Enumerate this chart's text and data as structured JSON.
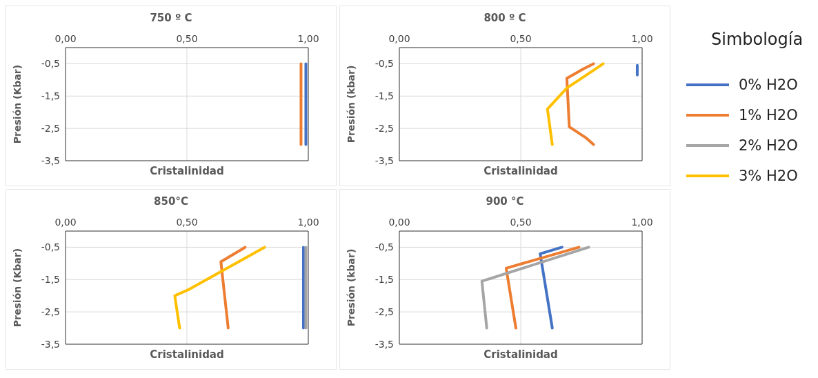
{
  "chart_data": [
    {
      "type": "line",
      "title": "750 º C",
      "xlabel": "Cristalinidad",
      "ylabel": "Presión (Kbar)",
      "xlim": [
        0,
        1
      ],
      "xticks": [
        {
          "value": 0,
          "label": "0,00"
        },
        {
          "value": 0.5,
          "label": "0,50"
        },
        {
          "value": 1,
          "label": "1,00"
        }
      ],
      "ylim": [
        -3.5,
        0
      ],
      "yticks": [
        {
          "value": -0.5,
          "label": "-0,5"
        },
        {
          "value": -1.5,
          "label": "-1,5"
        },
        {
          "value": -2.5,
          "label": "-2,5"
        },
        {
          "value": -3.5,
          "label": "-3,5"
        }
      ],
      "grid": true,
      "series": [
        {
          "color": "#4472c4",
          "x": [
            0.99,
            0.99
          ],
          "values": [
            -0.5,
            -3
          ]
        },
        {
          "color": "#ed7d31",
          "x": [
            0.97,
            0.97
          ],
          "values": [
            -0.5,
            -3
          ]
        }
      ]
    },
    {
      "type": "line",
      "title": "800 º C",
      "xlabel": "Cristalinidad",
      "ylabel": "Presión (kbar)",
      "xlim": [
        0,
        1
      ],
      "xticks": [
        {
          "value": 0,
          "label": "0,00"
        },
        {
          "value": 0.5,
          "label": "0,50"
        },
        {
          "value": 1,
          "label": "1,00"
        }
      ],
      "ylim": [
        -3.5,
        0
      ],
      "yticks": [
        {
          "value": -0.5,
          "label": "-0,5"
        },
        {
          "value": -1.5,
          "label": "-1,5"
        },
        {
          "value": -2.5,
          "label": "-2,5"
        },
        {
          "value": -3.5,
          "label": "-3,5"
        }
      ],
      "grid": true,
      "series": [
        {
          "color": "#4472c4",
          "x": [
            0.98,
            0.98
          ],
          "values": [
            -0.55,
            -0.85
          ]
        },
        {
          "color": "#ed7d31",
          "x": [
            0.8,
            0.76,
            0.69,
            0.7,
            0.77,
            0.8
          ],
          "values": [
            -0.5,
            -0.65,
            -0.95,
            -2.45,
            -2.8,
            -3
          ]
        },
        {
          "color": "#ffc000",
          "x": [
            0.84,
            0.8,
            0.69,
            0.61,
            0.63
          ],
          "values": [
            -0.5,
            -0.7,
            -1.25,
            -1.9,
            -3
          ]
        }
      ]
    },
    {
      "type": "line",
      "title": "850°C",
      "xlabel": "Cristalinidad",
      "ylabel": "Presión (Kbar)",
      "xlim": [
        0,
        1
      ],
      "xticks": [
        {
          "value": 0,
          "label": "0,00"
        },
        {
          "value": 0.5,
          "label": "0,50"
        },
        {
          "value": 1,
          "label": "1,00"
        }
      ],
      "ylim": [
        -3.5,
        0
      ],
      "yticks": [
        {
          "value": -0.5,
          "label": "-0,5"
        },
        {
          "value": -1.5,
          "label": "-1,5"
        },
        {
          "value": -2.5,
          "label": "-2,5"
        },
        {
          "value": -3.5,
          "label": "-3,5"
        }
      ],
      "grid": true,
      "legend": "right",
      "legend_title": "Simbología",
      "series": [
        {
          "name": "0% H2O",
          "color": "#4472c4",
          "x": [
            0.98,
            0.98
          ],
          "values": [
            -0.5,
            -3
          ]
        },
        {
          "name": "1% H2O",
          "color": "#ed7d31",
          "x": [
            0.74,
            0.64,
            0.67
          ],
          "values": [
            -0.5,
            -0.95,
            -3
          ]
        },
        {
          "name": "2% H2O",
          "color": "#a5a5a5",
          "x": [
            0.99,
            0.99
          ],
          "values": [
            -0.5,
            -3
          ]
        },
        {
          "name": "3% H2O",
          "color": "#ffc000",
          "x": [
            0.82,
            0.51,
            0.45,
            0.47
          ],
          "values": [
            -0.5,
            -1.8,
            -2,
            -3
          ]
        }
      ]
    },
    {
      "type": "line",
      "title": "900 °C",
      "xlabel": "Cristalinidad",
      "ylabel": "Presión (kbar)",
      "xlim": [
        0,
        1
      ],
      "xticks": [
        {
          "value": 0,
          "label": "0,00"
        },
        {
          "value": 0.5,
          "label": "0,50"
        },
        {
          "value": 1,
          "label": "1,00"
        }
      ],
      "ylim": [
        -3.5,
        0
      ],
      "yticks": [
        {
          "value": -0.5,
          "label": "-0,5"
        },
        {
          "value": -1.5,
          "label": "-1,5"
        },
        {
          "value": -2.5,
          "label": "-2,5"
        },
        {
          "value": -3.5,
          "label": "-3,5"
        }
      ],
      "grid": true,
      "series": [
        {
          "color": "#4472c4",
          "x": [
            0.67,
            0.58,
            0.63
          ],
          "values": [
            -0.5,
            -0.7,
            -3
          ]
        },
        {
          "color": "#ed7d31",
          "x": [
            0.74,
            0.44,
            0.48
          ],
          "values": [
            -0.5,
            -1.15,
            -3
          ]
        },
        {
          "color": "#a5a5a5",
          "x": [
            0.78,
            0.34,
            0.36
          ],
          "values": [
            -0.5,
            -1.55,
            -3
          ]
        }
      ]
    }
  ]
}
